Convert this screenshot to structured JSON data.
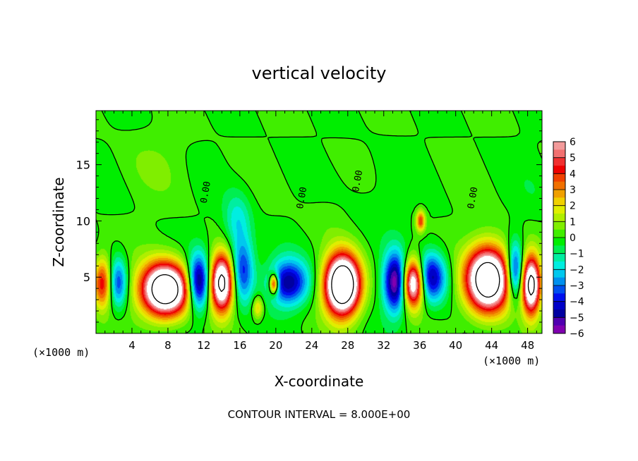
{
  "chart_data": {
    "type": "heatmap",
    "title": "vertical velocity",
    "xlabel": "X-coordinate",
    "ylabel": "Z-coordinate",
    "x_unit_left": "(×1000 m)",
    "x_unit_right": "(×1000 m)",
    "footer": "CONTOUR INTERVAL = 8.000E+00",
    "xlim": [
      0,
      49.6
    ],
    "ylim": [
      0,
      19.8
    ],
    "x_ticks": [
      4,
      8,
      12,
      16,
      20,
      24,
      28,
      32,
      36,
      40,
      44,
      48
    ],
    "y_ticks": [
      5,
      10,
      15
    ],
    "grid": false,
    "legend_position": "right",
    "colorbar": {
      "ticks": [
        6,
        5,
        4,
        3,
        2,
        1,
        0,
        -1,
        -2,
        -3,
        -4,
        -5,
        -6
      ],
      "levels": [
        {
          "from": 5.5,
          "to": 6,
          "color": "#f29a9a"
        },
        {
          "from": 5,
          "to": 5.5,
          "color": "#f27070"
        },
        {
          "from": 4.5,
          "to": 5,
          "color": "#f03030"
        },
        {
          "from": 4,
          "to": 4.5,
          "color": "#ee0000"
        },
        {
          "from": 3.5,
          "to": 4,
          "color": "#f04000"
        },
        {
          "from": 3,
          "to": 3.5,
          "color": "#f07000"
        },
        {
          "from": 2.5,
          "to": 3,
          "color": "#f0a000"
        },
        {
          "from": 2,
          "to": 2.5,
          "color": "#f0d000"
        },
        {
          "from": 1.5,
          "to": 2,
          "color": "#e0ee00"
        },
        {
          "from": 1,
          "to": 1.5,
          "color": "#b0ee00"
        },
        {
          "from": 0.5,
          "to": 1,
          "color": "#80ee00"
        },
        {
          "from": 0,
          "to": 0.5,
          "color": "#40ee00"
        },
        {
          "from": -0.5,
          "to": 0,
          "color": "#00ee00"
        },
        {
          "from": -1,
          "to": -0.5,
          "color": "#00ee50"
        },
        {
          "from": -1.5,
          "to": -1,
          "color": "#00eea0"
        },
        {
          "from": -2,
          "to": -1.5,
          "color": "#00eee0"
        },
        {
          "from": -2.5,
          "to": -2,
          "color": "#00c8ee"
        },
        {
          "from": -3,
          "to": -2.5,
          "color": "#0090ee"
        },
        {
          "from": -3.5,
          "to": -3,
          "color": "#0050ee"
        },
        {
          "from": -4,
          "to": -3.5,
          "color": "#0010ee"
        },
        {
          "from": -4.5,
          "to": -4,
          "color": "#0000c8"
        },
        {
          "from": -5,
          "to": -4.5,
          "color": "#0000a0"
        },
        {
          "from": -5.5,
          "to": -5,
          "color": "#5000b0"
        },
        {
          "from": -6,
          "to": -5.5,
          "color": "#8000b0"
        }
      ]
    },
    "contour_labels": [
      {
        "x": 12.5,
        "y": 12.5,
        "text": "0.00"
      },
      {
        "x": 23.2,
        "y": 12.0,
        "text": "0.00"
      },
      {
        "x": 29.4,
        "y": 13.5,
        "text": "0.00"
      },
      {
        "x": 42.2,
        "y": 12.0,
        "text": "0.00"
      }
    ],
    "features": [
      {
        "kind": "updraft",
        "x": 0.7,
        "z": 4.5,
        "sx": 1.0,
        "sz": 2.2,
        "amp": 4.5
      },
      {
        "kind": "downdraft",
        "x": 2.5,
        "z": 4.5,
        "sx": 1.0,
        "sz": 2.2,
        "amp": -3.5
      },
      {
        "kind": "updraft",
        "x": 7.7,
        "z": 3.9,
        "sx": 2.6,
        "sz": 2.3,
        "amp": 11
      },
      {
        "kind": "updraft",
        "x": 14.0,
        "z": 4.5,
        "sx": 1.3,
        "sz": 2.5,
        "amp": 9
      },
      {
        "kind": "downdraft",
        "x": 11.4,
        "z": 4.5,
        "sx": 1.2,
        "sz": 2.4,
        "amp": -6
      },
      {
        "kind": "downdraft",
        "x": 16.3,
        "z": 5.6,
        "sx": 1.3,
        "sz": 2.8,
        "amp": -4
      },
      {
        "kind": "downdraft",
        "x": 15.7,
        "z": 10.0,
        "sx": 1.5,
        "sz": 2.5,
        "amp": -1.8
      },
      {
        "kind": "updraft",
        "x": 18.0,
        "z": 2.3,
        "sx": 0.6,
        "sz": 1.0,
        "amp": 2.5
      },
      {
        "kind": "downdraft",
        "x": 21.4,
        "z": 4.5,
        "sx": 2.2,
        "sz": 2.0,
        "amp": -4.8
      },
      {
        "kind": "updraft",
        "x": 19.8,
        "z": 4.4,
        "sx": 0.5,
        "sz": 0.9,
        "amp": 6
      },
      {
        "kind": "updraft",
        "x": 27.4,
        "z": 4.3,
        "sx": 1.9,
        "sz": 2.6,
        "amp": 12
      },
      {
        "kind": "downdraft",
        "x": 33.3,
        "z": 4.5,
        "sx": 1.3,
        "sz": 2.6,
        "amp": -6
      },
      {
        "kind": "updraft",
        "x": 35.3,
        "z": 4.5,
        "sx": 1.2,
        "sz": 2.1,
        "amp": 9
      },
      {
        "kind": "downdraft",
        "x": 37.2,
        "z": 5.0,
        "sx": 1.8,
        "sz": 2.2,
        "amp": -5
      },
      {
        "kind": "updraft",
        "x": 36.1,
        "z": 10.0,
        "sx": 0.5,
        "sz": 0.9,
        "amp": 4
      },
      {
        "kind": "updraft",
        "x": 43.6,
        "z": 4.8,
        "sx": 2.4,
        "sz": 2.8,
        "amp": 11
      },
      {
        "kind": "downdraft",
        "x": 46.6,
        "z": 5.5,
        "sx": 0.9,
        "sz": 2.5,
        "amp": -5
      },
      {
        "kind": "updraft",
        "x": 48.4,
        "z": 4.3,
        "sx": 1.0,
        "sz": 2.5,
        "amp": 9
      },
      {
        "kind": "updraft",
        "x": 6.5,
        "z": 15.0,
        "sx": 4.0,
        "sz": 3.0,
        "amp": 0.4
      },
      {
        "kind": "updraft",
        "x": 25.5,
        "z": 10.5,
        "sx": 2.5,
        "sz": 2.0,
        "amp": 0.3
      },
      {
        "kind": "downdraft",
        "x": 31.0,
        "z": 12.0,
        "sx": 4.0,
        "sz": 3.5,
        "amp": -0.3
      },
      {
        "kind": "downdraft",
        "x": 49.0,
        "z": 13.0,
        "sx": 2.0,
        "sz": 3.0,
        "amp": -0.3
      }
    ]
  }
}
